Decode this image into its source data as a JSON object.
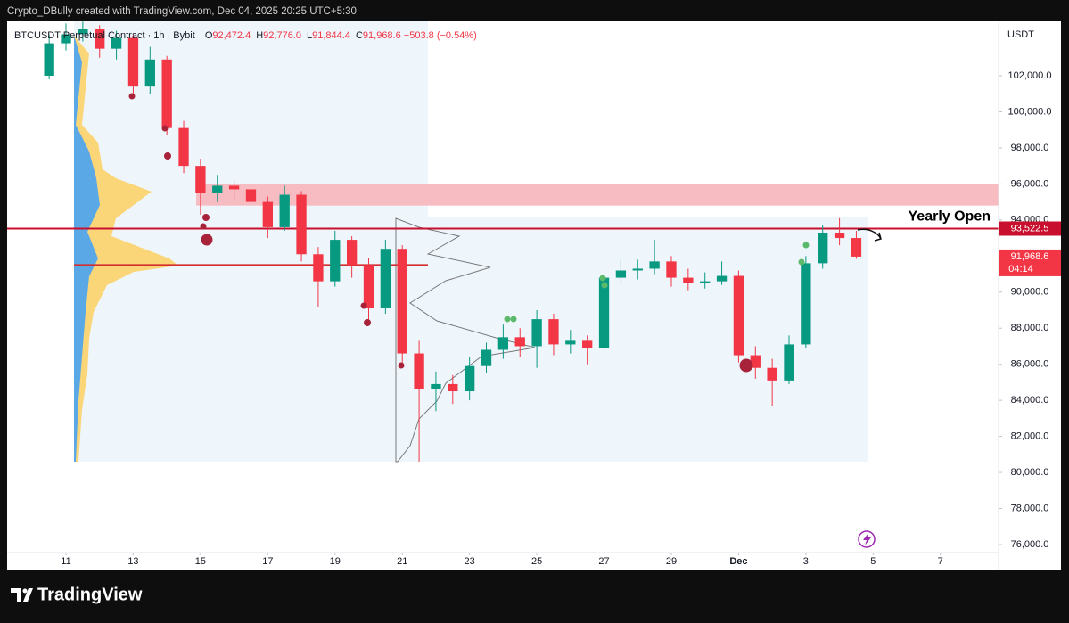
{
  "caption": "Crypto_DBully created with TradingView.com, Dec 04, 2025 20:25 UTC+5:30",
  "footer": "TradingView",
  "chart_data": {
    "type": "candlestick",
    "title": "BTCUSDT Perpetual Contract · 1h · Bybit",
    "last_bar": [
      {
        "name": "O",
        "value": 92472.4,
        "label": "92,472.4"
      },
      {
        "name": "H",
        "value": 92776.0,
        "label": "92,776.0"
      },
      {
        "name": "L",
        "value": 91844.4,
        "label": "91,844.4"
      },
      {
        "name": "C",
        "value": 91968.6,
        "label": "91,968.6"
      }
    ],
    "change": {
      "value": -503.8,
      "label": "−503.8"
    },
    "change_pct": {
      "value": -0.54,
      "label": "(−0.54%)"
    },
    "currency": "USDT",
    "up_color": "#089981",
    "down_color": "#f23645",
    "x": [
      10.5,
      11,
      11.5,
      12,
      12.5,
      13,
      13.5,
      14,
      14.5,
      15,
      15.5,
      16,
      16.5,
      17,
      17.5,
      18,
      18.5,
      19,
      19.5,
      20,
      20.5,
      21,
      21.5,
      22,
      22.5,
      23,
      23.5,
      24,
      24.5,
      25,
      25.5,
      26,
      26.5,
      27,
      27.5,
      28,
      28.5,
      29,
      29.5,
      30,
      30.5,
      31,
      31.5,
      32,
      32.5,
      33,
      33.5,
      34,
      34.5
    ],
    "open": [
      102000,
      103800,
      104300,
      104600,
      103500,
      104100,
      101400,
      102900,
      99100,
      97000,
      95500,
      95900,
      95700,
      95000,
      93600,
      95400,
      92100,
      90600,
      92900,
      91500,
      89100,
      92400,
      86600,
      84600,
      84900,
      84500,
      85900,
      86800,
      87500,
      87000,
      88500,
      87100,
      87300,
      86900,
      90800,
      91200,
      91300,
      91700,
      90800,
      90500,
      90600,
      90900,
      86500,
      85800,
      85100,
      87100,
      91600,
      93300,
      93000
    ],
    "high": [
      104300,
      104900,
      105000,
      104800,
      104500,
      104300,
      103600,
      103100,
      99500,
      97400,
      96500,
      96200,
      96000,
      95300,
      95900,
      95600,
      92500,
      93400,
      93100,
      91900,
      92900,
      92600,
      87300,
      85600,
      85400,
      86400,
      87200,
      88200,
      88000,
      89000,
      88800,
      87900,
      87600,
      91200,
      91800,
      91800,
      92900,
      92000,
      91300,
      91100,
      91700,
      91200,
      87000,
      86300,
      87600,
      92000,
      93700,
      94100,
      93400
    ],
    "low": [
      101800,
      103400,
      103900,
      103000,
      102900,
      100900,
      101000,
      98700,
      96600,
      94300,
      95000,
      95100,
      94500,
      93000,
      93400,
      91700,
      89200,
      90300,
      90800,
      88400,
      88800,
      85900,
      80600,
      83400,
      83800,
      84000,
      85500,
      86300,
      86400,
      85800,
      86500,
      86600,
      86000,
      86700,
      90500,
      90700,
      91000,
      90300,
      90100,
      90200,
      90400,
      86100,
      85200,
      83700,
      84900,
      86900,
      91300,
      92600,
      91844.4
    ],
    "close": [
      103800,
      104300,
      104600,
      103500,
      104100,
      101400,
      102900,
      99100,
      97000,
      95500,
      95900,
      95700,
      95000,
      93600,
      95400,
      92100,
      90600,
      92900,
      91500,
      89100,
      92400,
      86600,
      84600,
      84900,
      84500,
      85900,
      86800,
      87500,
      87000,
      88500,
      87100,
      87300,
      86900,
      90800,
      91200,
      91300,
      91700,
      90800,
      90500,
      90600,
      90900,
      86500,
      85800,
      85100,
      87100,
      91600,
      93300,
      93000,
      91968.6
    ],
    "xlim": [
      9.25,
      38.73
    ],
    "xticks": [
      11,
      13,
      15,
      17,
      19,
      21,
      23,
      25,
      27,
      29,
      {
        "value": 31,
        "label": "Dec"
      },
      {
        "value": 33,
        "label": "3"
      },
      {
        "value": 35,
        "label": "5"
      },
      {
        "value": 37,
        "label": "7"
      }
    ],
    "ylim": [
      75554,
      105015
    ],
    "yticks": [
      {
        "value": 76000,
        "label": "76,000.0"
      },
      {
        "value": 78000,
        "label": "78,000.0"
      },
      {
        "value": 80000,
        "label": "80,000.0"
      },
      {
        "value": 82000,
        "label": "82,000.0"
      },
      {
        "value": 84000,
        "label": "84,000.0"
      },
      {
        "value": 86000,
        "label": "86,000.0"
      },
      {
        "value": 88000,
        "label": "88,000.0"
      },
      {
        "value": 90000,
        "label": "90,000.0"
      },
      {
        "value": 92000,
        "label": "92,000.0"
      },
      {
        "value": 94000,
        "label": "94,000.0"
      },
      {
        "value": 96000,
        "label": "96,000.0"
      },
      {
        "value": 98000,
        "label": "98,000.0"
      },
      {
        "value": 100000,
        "label": "100,000.0"
      },
      {
        "value": 102000,
        "label": "102,000.0"
      }
    ],
    "grid": false,
    "zone": {
      "from": 94800,
      "to": 96000,
      "color": "#f7b8bf"
    },
    "yearly_open": {
      "name": "Yearly Open",
      "value": 93522.5,
      "label": "93,522.5",
      "color": "#c8102e"
    },
    "poc_line": {
      "value": 91500,
      "color": "#d32f2f"
    },
    "last_price": {
      "value": 91968.6,
      "label": "91,968.6",
      "countdown": "04:14",
      "color": "#f23645"
    }
  }
}
